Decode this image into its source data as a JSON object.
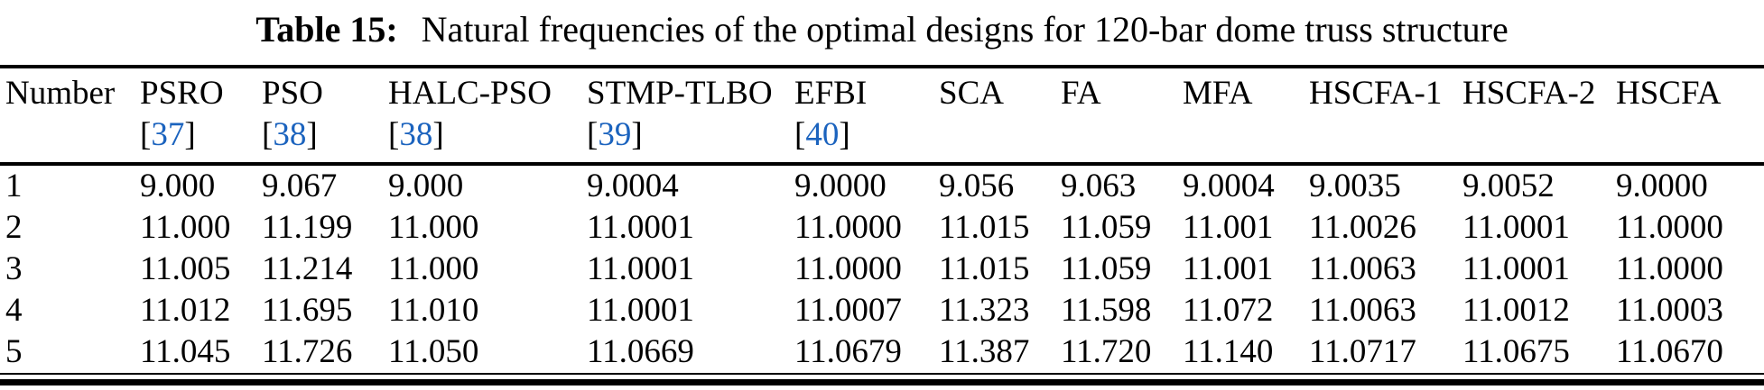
{
  "caption": {
    "label": "Table 15:",
    "text": "Natural frequencies of the optimal designs for 120-bar dome truss structure"
  },
  "colors": {
    "citation_link": "#1b63be",
    "text": "#000000",
    "rule": "#000000",
    "background": "#ffffff"
  },
  "table": {
    "columns": [
      {
        "label": "Number",
        "ref": ""
      },
      {
        "label": "PSRO",
        "ref": "37"
      },
      {
        "label": "PSO",
        "ref": "38"
      },
      {
        "label": "HALC-PSO",
        "ref": "38"
      },
      {
        "label": "STMP-TLBO",
        "ref": "39"
      },
      {
        "label": "EFBI",
        "ref": "40"
      },
      {
        "label": "SCA",
        "ref": ""
      },
      {
        "label": "FA",
        "ref": ""
      },
      {
        "label": "MFA",
        "ref": ""
      },
      {
        "label": "HSCFA-1",
        "ref": ""
      },
      {
        "label": "HSCFA-2",
        "ref": ""
      },
      {
        "label": "HSCFA",
        "ref": ""
      }
    ],
    "rows": [
      [
        "1",
        "9.000",
        "9.067",
        "9.000",
        "9.0004",
        "9.0000",
        "9.056",
        "9.063",
        "9.0004",
        "9.0035",
        "9.0052",
        "9.0000"
      ],
      [
        "2",
        "11.000",
        "11.199",
        "11.000",
        "11.0001",
        "11.0000",
        "11.015",
        "11.059",
        "11.001",
        "11.0026",
        "11.0001",
        "11.0000"
      ],
      [
        "3",
        "11.005",
        "11.214",
        "11.000",
        "11.0001",
        "11.0000",
        "11.015",
        "11.059",
        "11.001",
        "11.0063",
        "11.0001",
        "11.0000"
      ],
      [
        "4",
        "11.012",
        "11.695",
        "11.010",
        "11.0001",
        "11.0007",
        "11.323",
        "11.598",
        "11.072",
        "11.0063",
        "11.0012",
        "11.0003"
      ],
      [
        "5",
        "11.045",
        "11.726",
        "11.050",
        "11.0669",
        "11.0679",
        "11.387",
        "11.720",
        "11.140",
        "11.0717",
        "11.0675",
        "11.0670"
      ]
    ]
  }
}
